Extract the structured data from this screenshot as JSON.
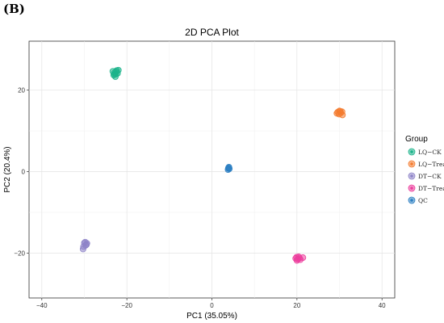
{
  "panel_label": "(B)",
  "chart_data": {
    "type": "scatter",
    "title": "2D PCA Plot",
    "xlabel": "PC1 (35.05%)",
    "ylabel": "PC2 (20.4%)",
    "xlim": [
      -43,
      43
    ],
    "ylim": [
      -31,
      32
    ],
    "xticks": [
      -40,
      -20,
      0,
      20,
      40
    ],
    "yticks": [
      -20,
      0,
      20
    ],
    "grid": true,
    "legend": {
      "title": "Group",
      "placement": "right"
    },
    "series": [
      {
        "name": "LQ−CK",
        "color": "#1BB38A",
        "points": [
          [
            -22.4,
            24.8
          ],
          [
            -22.9,
            24.3
          ],
          [
            -22.6,
            23.9
          ],
          [
            -23.1,
            23.7
          ],
          [
            -22.7,
            23.3
          ],
          [
            -22.2,
            24.1
          ],
          [
            -23.3,
            24.6
          ],
          [
            -22.5,
            24.5
          ],
          [
            -22.9,
            23.9
          ],
          [
            -22.0,
            24.9
          ]
        ]
      },
      {
        "name": "LQ−Treat",
        "color": "#F47C30",
        "points": [
          [
            29.6,
            14.6
          ],
          [
            30.0,
            14.9
          ],
          [
            30.3,
            14.4
          ],
          [
            29.9,
            14.1
          ],
          [
            30.6,
            14.7
          ],
          [
            30.7,
            13.9
          ],
          [
            29.4,
            14.3
          ],
          [
            30.2,
            14.8
          ]
        ]
      },
      {
        "name": "DT−CK",
        "color": "#8E84C8",
        "points": [
          [
            -29.8,
            -17.3
          ],
          [
            -29.5,
            -17.9
          ],
          [
            -30.2,
            -18.4
          ],
          [
            -29.7,
            -18.1
          ],
          [
            -30.3,
            -19.0
          ],
          [
            -29.4,
            -17.6
          ],
          [
            -30.0,
            -17.5
          ]
        ]
      },
      {
        "name": "DT−Treat",
        "color": "#EC3E9D",
        "points": [
          [
            19.9,
            -21.0
          ],
          [
            20.2,
            -21.5
          ],
          [
            20.6,
            -21.2
          ],
          [
            20.0,
            -21.8
          ],
          [
            20.4,
            -20.9
          ],
          [
            21.4,
            -21.1
          ],
          [
            19.7,
            -21.3
          ],
          [
            20.8,
            -21.6
          ]
        ]
      },
      {
        "name": "QC",
        "color": "#2C7FC2",
        "points": [
          [
            3.9,
            0.8
          ],
          [
            4.0,
            1.1
          ],
          [
            3.8,
            0.5
          ],
          [
            4.1,
            0.7
          ],
          [
            3.9,
            0.9
          ]
        ]
      }
    ]
  }
}
